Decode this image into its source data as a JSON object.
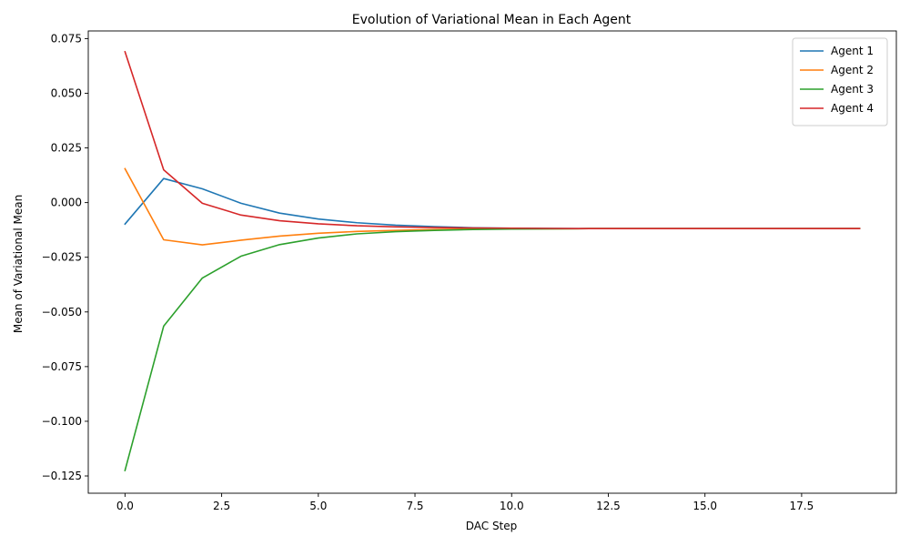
{
  "chart_data": {
    "type": "line",
    "title": "Evolution of Variational Mean in Each Agent",
    "xlabel": "DAC Step",
    "ylabel": "Mean of Variational Mean",
    "xlim": [
      -0.95,
      19.95
    ],
    "ylim": [
      -0.1329,
      0.0785
    ],
    "xticks": [
      0.0,
      2.5,
      5.0,
      7.5,
      10.0,
      12.5,
      15.0,
      17.5
    ],
    "xtick_labels": [
      "0.0",
      "2.5",
      "5.0",
      "7.5",
      "10.0",
      "12.5",
      "15.0",
      "17.5"
    ],
    "yticks": [
      -0.125,
      -0.1,
      -0.075,
      -0.05,
      -0.025,
      0.0,
      0.025,
      0.05,
      0.075
    ],
    "ytick_labels": [
      "−0.125",
      "−0.100",
      "−0.075",
      "−0.050",
      "−0.025",
      "0.000",
      "0.025",
      "0.050",
      "0.075"
    ],
    "grid": false,
    "legend_position": "top-right",
    "x": [
      0,
      1,
      2,
      3,
      4,
      5,
      6,
      7,
      8,
      9,
      10,
      11,
      12,
      13,
      14,
      15,
      16,
      17,
      18,
      19
    ],
    "series": [
      {
        "name": "Agent 1",
        "color": "#1f77b4",
        "values": [
          -0.0098,
          0.011,
          0.0063,
          -0.0003,
          -0.0048,
          -0.0075,
          -0.0092,
          -0.0103,
          -0.011,
          -0.0115,
          -0.0117,
          -0.0118,
          -0.0119,
          -0.0119,
          -0.0119,
          -0.0119,
          -0.0119,
          -0.0119,
          -0.0119,
          -0.0119
        ]
      },
      {
        "name": "Agent 2",
        "color": "#ff7f0e",
        "values": [
          0.0155,
          -0.017,
          -0.0193,
          -0.0172,
          -0.0153,
          -0.014,
          -0.0132,
          -0.0127,
          -0.0123,
          -0.0121,
          -0.012,
          -0.012,
          -0.0119,
          -0.0119,
          -0.0119,
          -0.0119,
          -0.0119,
          -0.0119,
          -0.0119,
          -0.0119
        ]
      },
      {
        "name": "Agent 3",
        "color": "#2ca02c",
        "values": [
          -0.1225,
          -0.0565,
          -0.0345,
          -0.0245,
          -0.0192,
          -0.0162,
          -0.0143,
          -0.0133,
          -0.0127,
          -0.0123,
          -0.0121,
          -0.012,
          -0.0119,
          -0.0119,
          -0.0119,
          -0.0119,
          -0.0119,
          -0.0119,
          -0.0119,
          -0.0119
        ]
      },
      {
        "name": "Agent 4",
        "color": "#d62728",
        "values": [
          0.069,
          0.015,
          -0.0003,
          -0.0057,
          -0.0083,
          -0.0097,
          -0.0106,
          -0.0111,
          -0.0114,
          -0.0116,
          -0.0117,
          -0.0118,
          -0.0119,
          -0.0119,
          -0.0119,
          -0.0119,
          -0.0119,
          -0.0119,
          -0.0119,
          -0.0119
        ]
      }
    ]
  }
}
